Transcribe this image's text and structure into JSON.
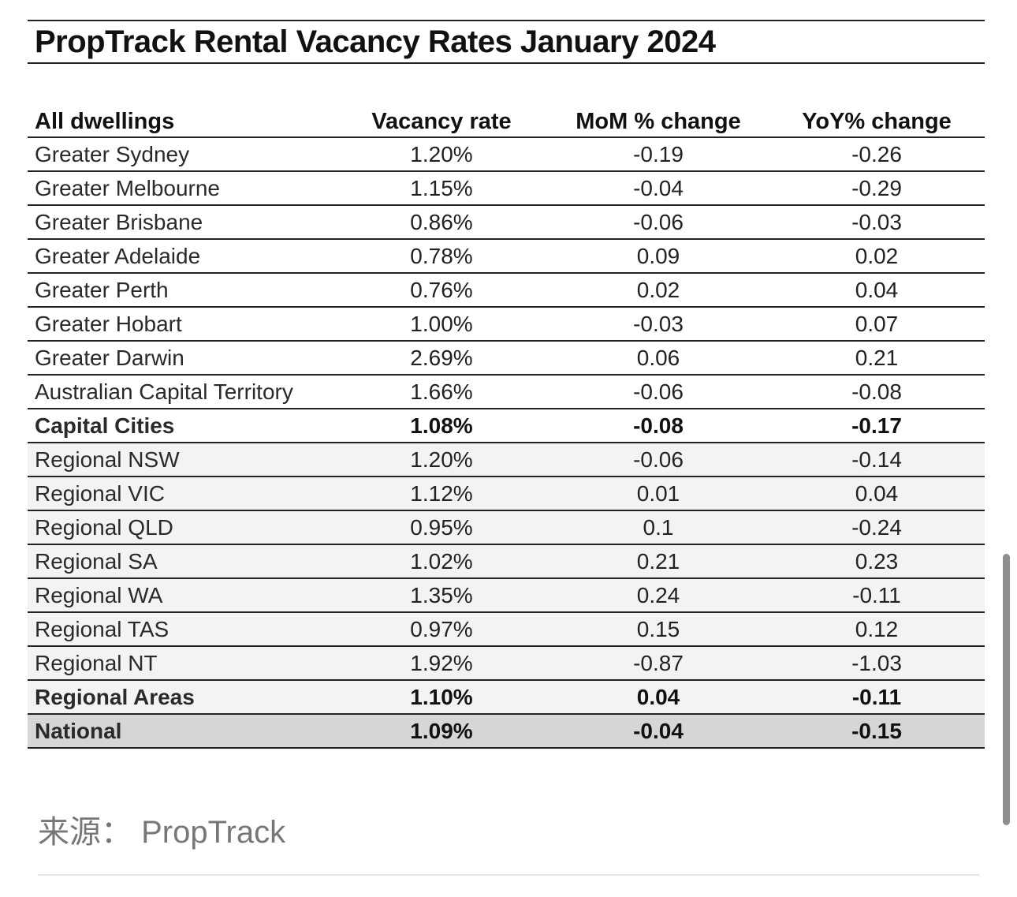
{
  "title": "PropTrack Rental Vacancy Rates January 2024",
  "table": {
    "headers": [
      "All dwellings",
      "Vacancy rate",
      "MoM % change",
      "YoY% change"
    ],
    "rows": [
      {
        "name": "Greater Sydney",
        "vacancy": "1.20%",
        "mom": "-0.19",
        "yoy": "-0.26",
        "style": "normal"
      },
      {
        "name": "Greater Melbourne",
        "vacancy": "1.15%",
        "mom": "-0.04",
        "yoy": "-0.29",
        "style": "normal"
      },
      {
        "name": "Greater Brisbane",
        "vacancy": "0.86%",
        "mom": "-0.06",
        "yoy": "-0.03",
        "style": "normal"
      },
      {
        "name": "Greater Adelaide",
        "vacancy": "0.78%",
        "mom": "0.09",
        "yoy": "0.02",
        "style": "normal"
      },
      {
        "name": "Greater Perth",
        "vacancy": "0.76%",
        "mom": "0.02",
        "yoy": "0.04",
        "style": "normal"
      },
      {
        "name": "Greater Hobart",
        "vacancy": "1.00%",
        "mom": "-0.03",
        "yoy": "0.07",
        "style": "normal"
      },
      {
        "name": "Greater Darwin",
        "vacancy": "2.69%",
        "mom": "0.06",
        "yoy": "0.21",
        "style": "normal"
      },
      {
        "name": "Australian Capital Territory",
        "vacancy": "1.66%",
        "mom": "-0.06",
        "yoy": "-0.08",
        "style": "normal"
      },
      {
        "name": "Capital Cities",
        "vacancy": "1.08%",
        "mom": "-0.08",
        "yoy": "-0.17",
        "style": "total"
      },
      {
        "name": "Regional NSW",
        "vacancy": "1.20%",
        "mom": "-0.06",
        "yoy": "-0.14",
        "style": "regional"
      },
      {
        "name": "Regional VIC",
        "vacancy": "1.12%",
        "mom": "0.01",
        "yoy": "0.04",
        "style": "regional"
      },
      {
        "name": "Regional QLD",
        "vacancy": "0.95%",
        "mom": "0.1",
        "yoy": "-0.24",
        "style": "regional"
      },
      {
        "name": "Regional SA",
        "vacancy": "1.02%",
        "mom": "0.21",
        "yoy": "0.23",
        "style": "regional"
      },
      {
        "name": "Regional WA",
        "vacancy": "1.35%",
        "mom": "0.24",
        "yoy": "-0.11",
        "style": "regional"
      },
      {
        "name": "Regional TAS",
        "vacancy": "0.97%",
        "mom": "0.15",
        "yoy": "0.12",
        "style": "regional"
      },
      {
        "name": "Regional NT",
        "vacancy": "1.92%",
        "mom": "-0.87",
        "yoy": "-1.03",
        "style": "regional"
      },
      {
        "name": "Regional Areas",
        "vacancy": "1.10%",
        "mom": "0.04",
        "yoy": "-0.11",
        "style": "regional total"
      },
      {
        "name": "National",
        "vacancy": "1.09%",
        "mom": "-0.04",
        "yoy": "-0.15",
        "style": "national"
      }
    ]
  },
  "source": "来源：  PropTrack"
}
